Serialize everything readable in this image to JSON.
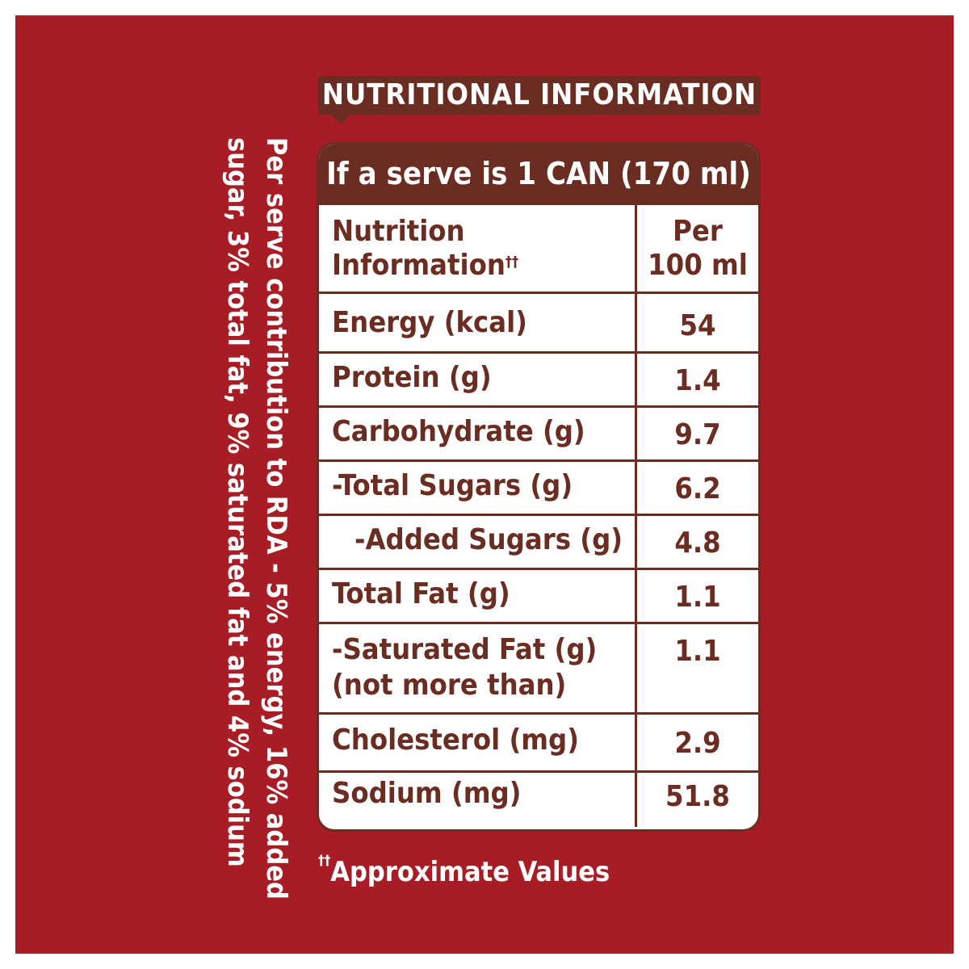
{
  "title": "NUTRITIONAL INFORMATION",
  "serve_header": "If a serve is 1 CAN (170 ml)",
  "table": {
    "header": {
      "label_line1": "Nutrition",
      "label_line2": "Information",
      "label_marker": "††",
      "value_line1": "Per",
      "value_line2": "100 ml"
    },
    "rows": [
      {
        "label": "Energy (kcal)",
        "value": "54"
      },
      {
        "label": "Protein (g)",
        "value": "1.4"
      },
      {
        "label": "Carbohydrate (g)",
        "value": "9.7"
      },
      {
        "label": "-Total Sugars (g)",
        "value": "6.2"
      },
      {
        "label": "-Added Sugars (g)",
        "value": "4.8"
      },
      {
        "label": "Total Fat (g)",
        "value": "1.1"
      },
      {
        "label_line1": "-Saturated Fat (g)",
        "label_line2": "(not more than)",
        "value": "1.1"
      },
      {
        "label": "Cholesterol (mg)",
        "value": "2.9"
      },
      {
        "label": "Sodium (mg)",
        "value": "51.8"
      }
    ]
  },
  "side_note": {
    "line1": "Per serve contribution to RDA - 5% energy, 16% added",
    "line2": "sugar, 3% total fat, 9% saturated fat and 4% sodium"
  },
  "footnote": {
    "marker": "††",
    "text": "Approximate Values"
  },
  "colors": {
    "background": "#a81d25",
    "brown": "#6b2c22",
    "text_on_red": "#ffffff"
  }
}
